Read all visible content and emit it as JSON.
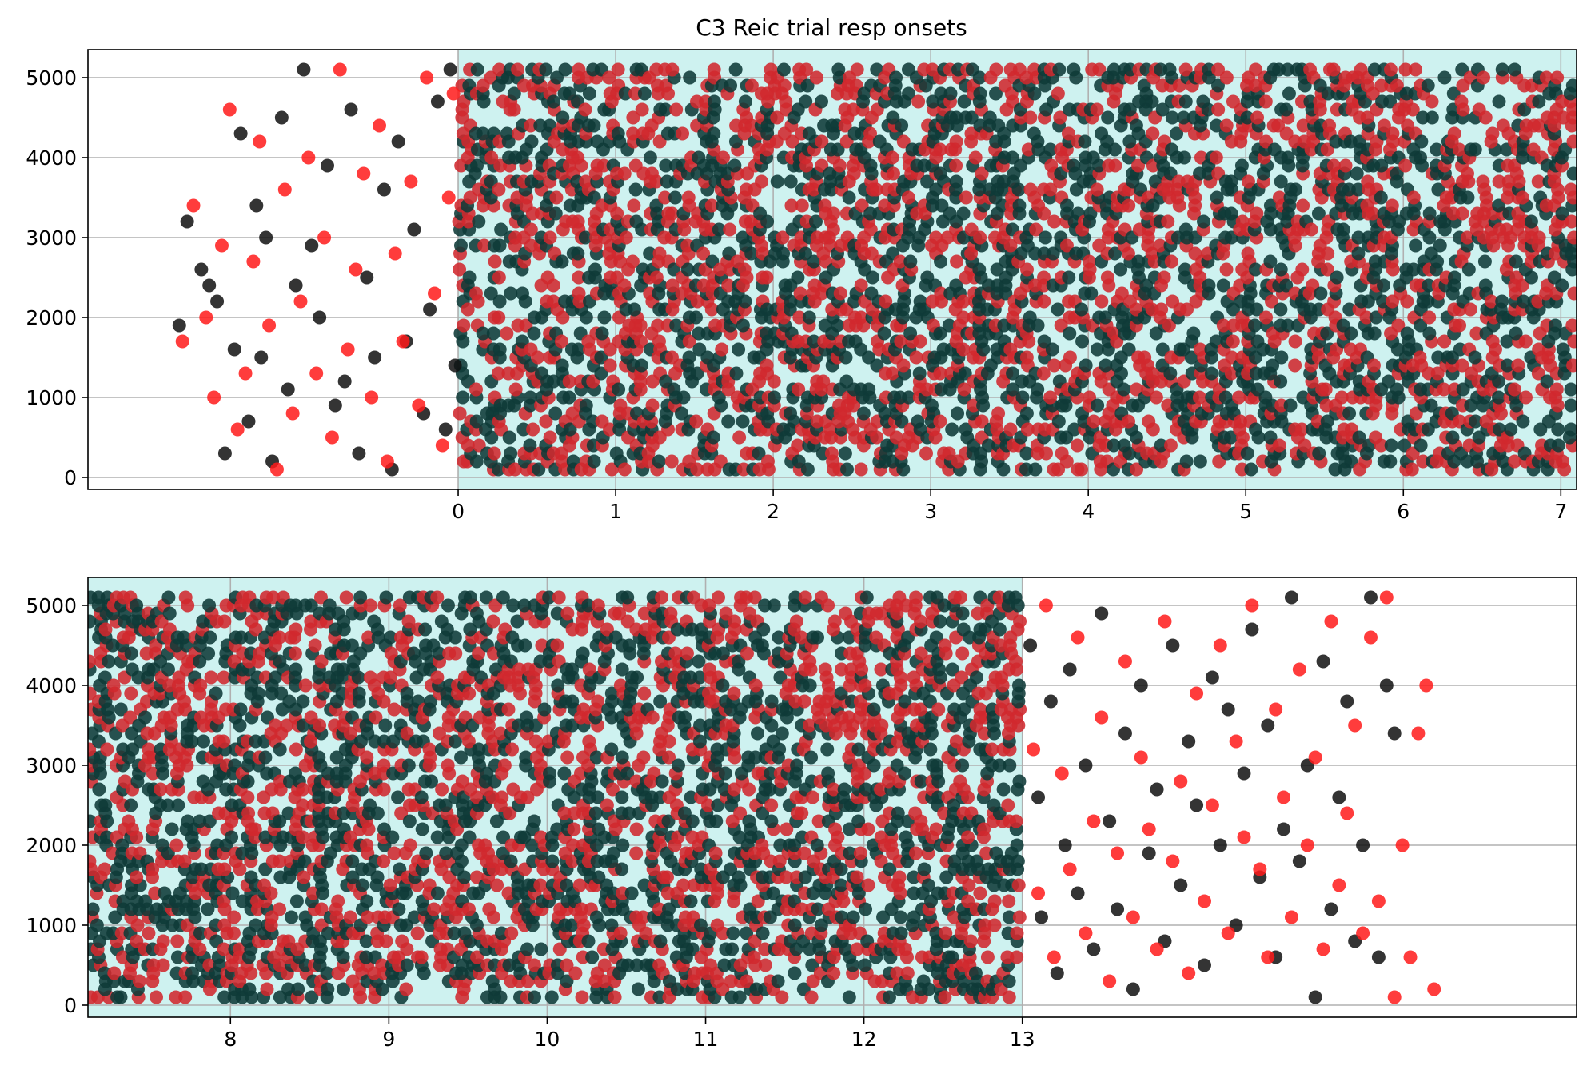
{
  "chart_data": [
    {
      "type": "scatter",
      "title": "C3 Reic trial resp onsets",
      "xlim": [
        -2.35,
        7.1
      ],
      "ylim": [
        -150,
        5350
      ],
      "xticks": [
        0,
        1,
        2,
        3,
        4,
        5,
        6,
        7
      ],
      "yticks": [
        0,
        1000,
        2000,
        3000,
        4000,
        5000
      ],
      "grid": true,
      "shaded_region": {
        "x": [
          0,
          7.1
        ],
        "color": "#cef2f0"
      },
      "series_colors": {
        "black": "#111111",
        "red": "#ff1a1a"
      },
      "series": [
        {
          "color": "black",
          "points": [
            [
              -1.77,
              1900
            ],
            [
              -1.72,
              3200
            ],
            [
              -1.63,
              2600
            ],
            [
              -1.58,
              2400
            ],
            [
              -1.53,
              2200
            ],
            [
              -1.48,
              300
            ],
            [
              -1.42,
              1600
            ],
            [
              -1.38,
              4300
            ],
            [
              -1.33,
              700
            ],
            [
              -1.28,
              3400
            ],
            [
              -1.25,
              1500
            ],
            [
              -1.22,
              3000
            ],
            [
              -1.18,
              200
            ],
            [
              -1.12,
              4500
            ],
            [
              -1.08,
              1100
            ],
            [
              -1.03,
              2400
            ],
            [
              -0.98,
              5100
            ],
            [
              -0.93,
              2900
            ],
            [
              -0.88,
              2000
            ],
            [
              -0.83,
              3900
            ],
            [
              -0.78,
              900
            ],
            [
              -0.72,
              1200
            ],
            [
              -0.68,
              4600
            ],
            [
              -0.63,
              300
            ],
            [
              -0.58,
              2500
            ],
            [
              -0.53,
              1500
            ],
            [
              -0.47,
              3600
            ],
            [
              -0.42,
              100
            ],
            [
              -0.38,
              4200
            ],
            [
              -0.33,
              1700
            ],
            [
              -0.28,
              3100
            ],
            [
              -0.22,
              800
            ],
            [
              -0.18,
              2100
            ],
            [
              -0.13,
              4700
            ],
            [
              -0.08,
              600
            ],
            [
              -0.05,
              5100
            ],
            [
              -0.02,
              1400
            ]
          ]
        },
        {
          "color": "red",
          "points": [
            [
              -1.75,
              1700
            ],
            [
              -1.68,
              3400
            ],
            [
              -1.6,
              2000
            ],
            [
              -1.55,
              1000
            ],
            [
              -1.5,
              2900
            ],
            [
              -1.45,
              4600
            ],
            [
              -1.4,
              600
            ],
            [
              -1.35,
              1300
            ],
            [
              -1.3,
              2700
            ],
            [
              -1.26,
              4200
            ],
            [
              -1.2,
              1900
            ],
            [
              -1.15,
              100
            ],
            [
              -1.1,
              3600
            ],
            [
              -1.05,
              800
            ],
            [
              -1.0,
              2200
            ],
            [
              -0.95,
              4000
            ],
            [
              -0.9,
              1300
            ],
            [
              -0.85,
              3000
            ],
            [
              -0.8,
              500
            ],
            [
              -0.75,
              5100
            ],
            [
              -0.7,
              1600
            ],
            [
              -0.65,
              2600
            ],
            [
              -0.6,
              3800
            ],
            [
              -0.55,
              1000
            ],
            [
              -0.5,
              4400
            ],
            [
              -0.45,
              200
            ],
            [
              -0.4,
              2800
            ],
            [
              -0.35,
              1700
            ],
            [
              -0.3,
              3700
            ],
            [
              -0.25,
              900
            ],
            [
              -0.2,
              5000
            ],
            [
              -0.15,
              2300
            ],
            [
              -0.1,
              400
            ],
            [
              -0.06,
              3500
            ],
            [
              -0.03,
              4800
            ]
          ]
        }
      ]
    },
    {
      "type": "scatter",
      "title": "",
      "xlim": [
        7.1,
        16.5
      ],
      "ylim": [
        -150,
        5350
      ],
      "xticks": [
        8,
        9,
        10,
        11,
        12,
        13
      ],
      "yticks": [
        0,
        1000,
        2000,
        3000,
        4000,
        5000
      ],
      "grid": true,
      "shaded_region": {
        "x": [
          7.1,
          13.0
        ],
        "color": "#cef2f0"
      },
      "series_colors": {
        "black": "#111111",
        "red": "#ff1a1a"
      },
      "series": [
        {
          "color": "black",
          "points": [
            [
              13.05,
              4500
            ],
            [
              13.1,
              2600
            ],
            [
              13.12,
              1100
            ],
            [
              13.18,
              3800
            ],
            [
              13.22,
              400
            ],
            [
              13.27,
              2000
            ],
            [
              13.3,
              4200
            ],
            [
              13.35,
              1400
            ],
            [
              13.4,
              3000
            ],
            [
              13.45,
              700
            ],
            [
              13.5,
              4900
            ],
            [
              13.55,
              2300
            ],
            [
              13.6,
              1200
            ],
            [
              13.65,
              3400
            ],
            [
              13.7,
              200
            ],
            [
              13.75,
              4000
            ],
            [
              13.8,
              1900
            ],
            [
              13.85,
              2700
            ],
            [
              13.9,
              800
            ],
            [
              13.95,
              4500
            ],
            [
              14.0,
              1500
            ],
            [
              14.05,
              3300
            ],
            [
              14.1,
              2500
            ],
            [
              14.15,
              500
            ],
            [
              14.2,
              4100
            ],
            [
              14.25,
              2000
            ],
            [
              14.3,
              3700
            ],
            [
              14.35,
              1000
            ],
            [
              14.4,
              2900
            ],
            [
              14.45,
              4700
            ],
            [
              14.5,
              1600
            ],
            [
              14.55,
              3500
            ],
            [
              14.6,
              600
            ],
            [
              14.65,
              2200
            ],
            [
              14.7,
              5100
            ],
            [
              14.75,
              1800
            ],
            [
              14.8,
              3000
            ],
            [
              14.85,
              100
            ],
            [
              14.9,
              4300
            ],
            [
              14.95,
              1200
            ],
            [
              15.0,
              2600
            ],
            [
              15.05,
              3800
            ],
            [
              15.1,
              800
            ],
            [
              15.15,
              2000
            ],
            [
              15.2,
              5100
            ],
            [
              15.25,
              600
            ],
            [
              15.3,
              4000
            ],
            [
              15.35,
              3400
            ]
          ]
        },
        {
          "color": "red",
          "points": [
            [
              13.07,
              3200
            ],
            [
              13.1,
              1400
            ],
            [
              13.15,
              5000
            ],
            [
              13.2,
              600
            ],
            [
              13.25,
              2900
            ],
            [
              13.3,
              1700
            ],
            [
              13.35,
              4600
            ],
            [
              13.4,
              900
            ],
            [
              13.45,
              2300
            ],
            [
              13.5,
              3600
            ],
            [
              13.55,
              300
            ],
            [
              13.6,
              1900
            ],
            [
              13.65,
              4300
            ],
            [
              13.7,
              1100
            ],
            [
              13.75,
              3100
            ],
            [
              13.8,
              2200
            ],
            [
              13.85,
              700
            ],
            [
              13.9,
              4800
            ],
            [
              13.95,
              1800
            ],
            [
              14.0,
              2800
            ],
            [
              14.05,
              400
            ],
            [
              14.1,
              3900
            ],
            [
              14.15,
              1300
            ],
            [
              14.2,
              2500
            ],
            [
              14.25,
              4500
            ],
            [
              14.3,
              900
            ],
            [
              14.35,
              3300
            ],
            [
              14.4,
              2100
            ],
            [
              14.45,
              5000
            ],
            [
              14.5,
              1700
            ],
            [
              14.55,
              600
            ],
            [
              14.6,
              3700
            ],
            [
              14.65,
              2600
            ],
            [
              14.7,
              1100
            ],
            [
              14.75,
              4200
            ],
            [
              14.8,
              2000
            ],
            [
              14.85,
              3100
            ],
            [
              14.9,
              700
            ],
            [
              14.95,
              4800
            ],
            [
              15.0,
              1500
            ],
            [
              15.05,
              2400
            ],
            [
              15.1,
              3500
            ],
            [
              15.15,
              900
            ],
            [
              15.2,
              4600
            ],
            [
              15.25,
              1300
            ],
            [
              15.3,
              5100
            ],
            [
              15.35,
              100
            ],
            [
              15.4,
              2000
            ],
            [
              15.45,
              600
            ],
            [
              15.5,
              3400
            ],
            [
              15.55,
              4000
            ],
            [
              15.6,
              200
            ]
          ]
        }
      ]
    }
  ]
}
